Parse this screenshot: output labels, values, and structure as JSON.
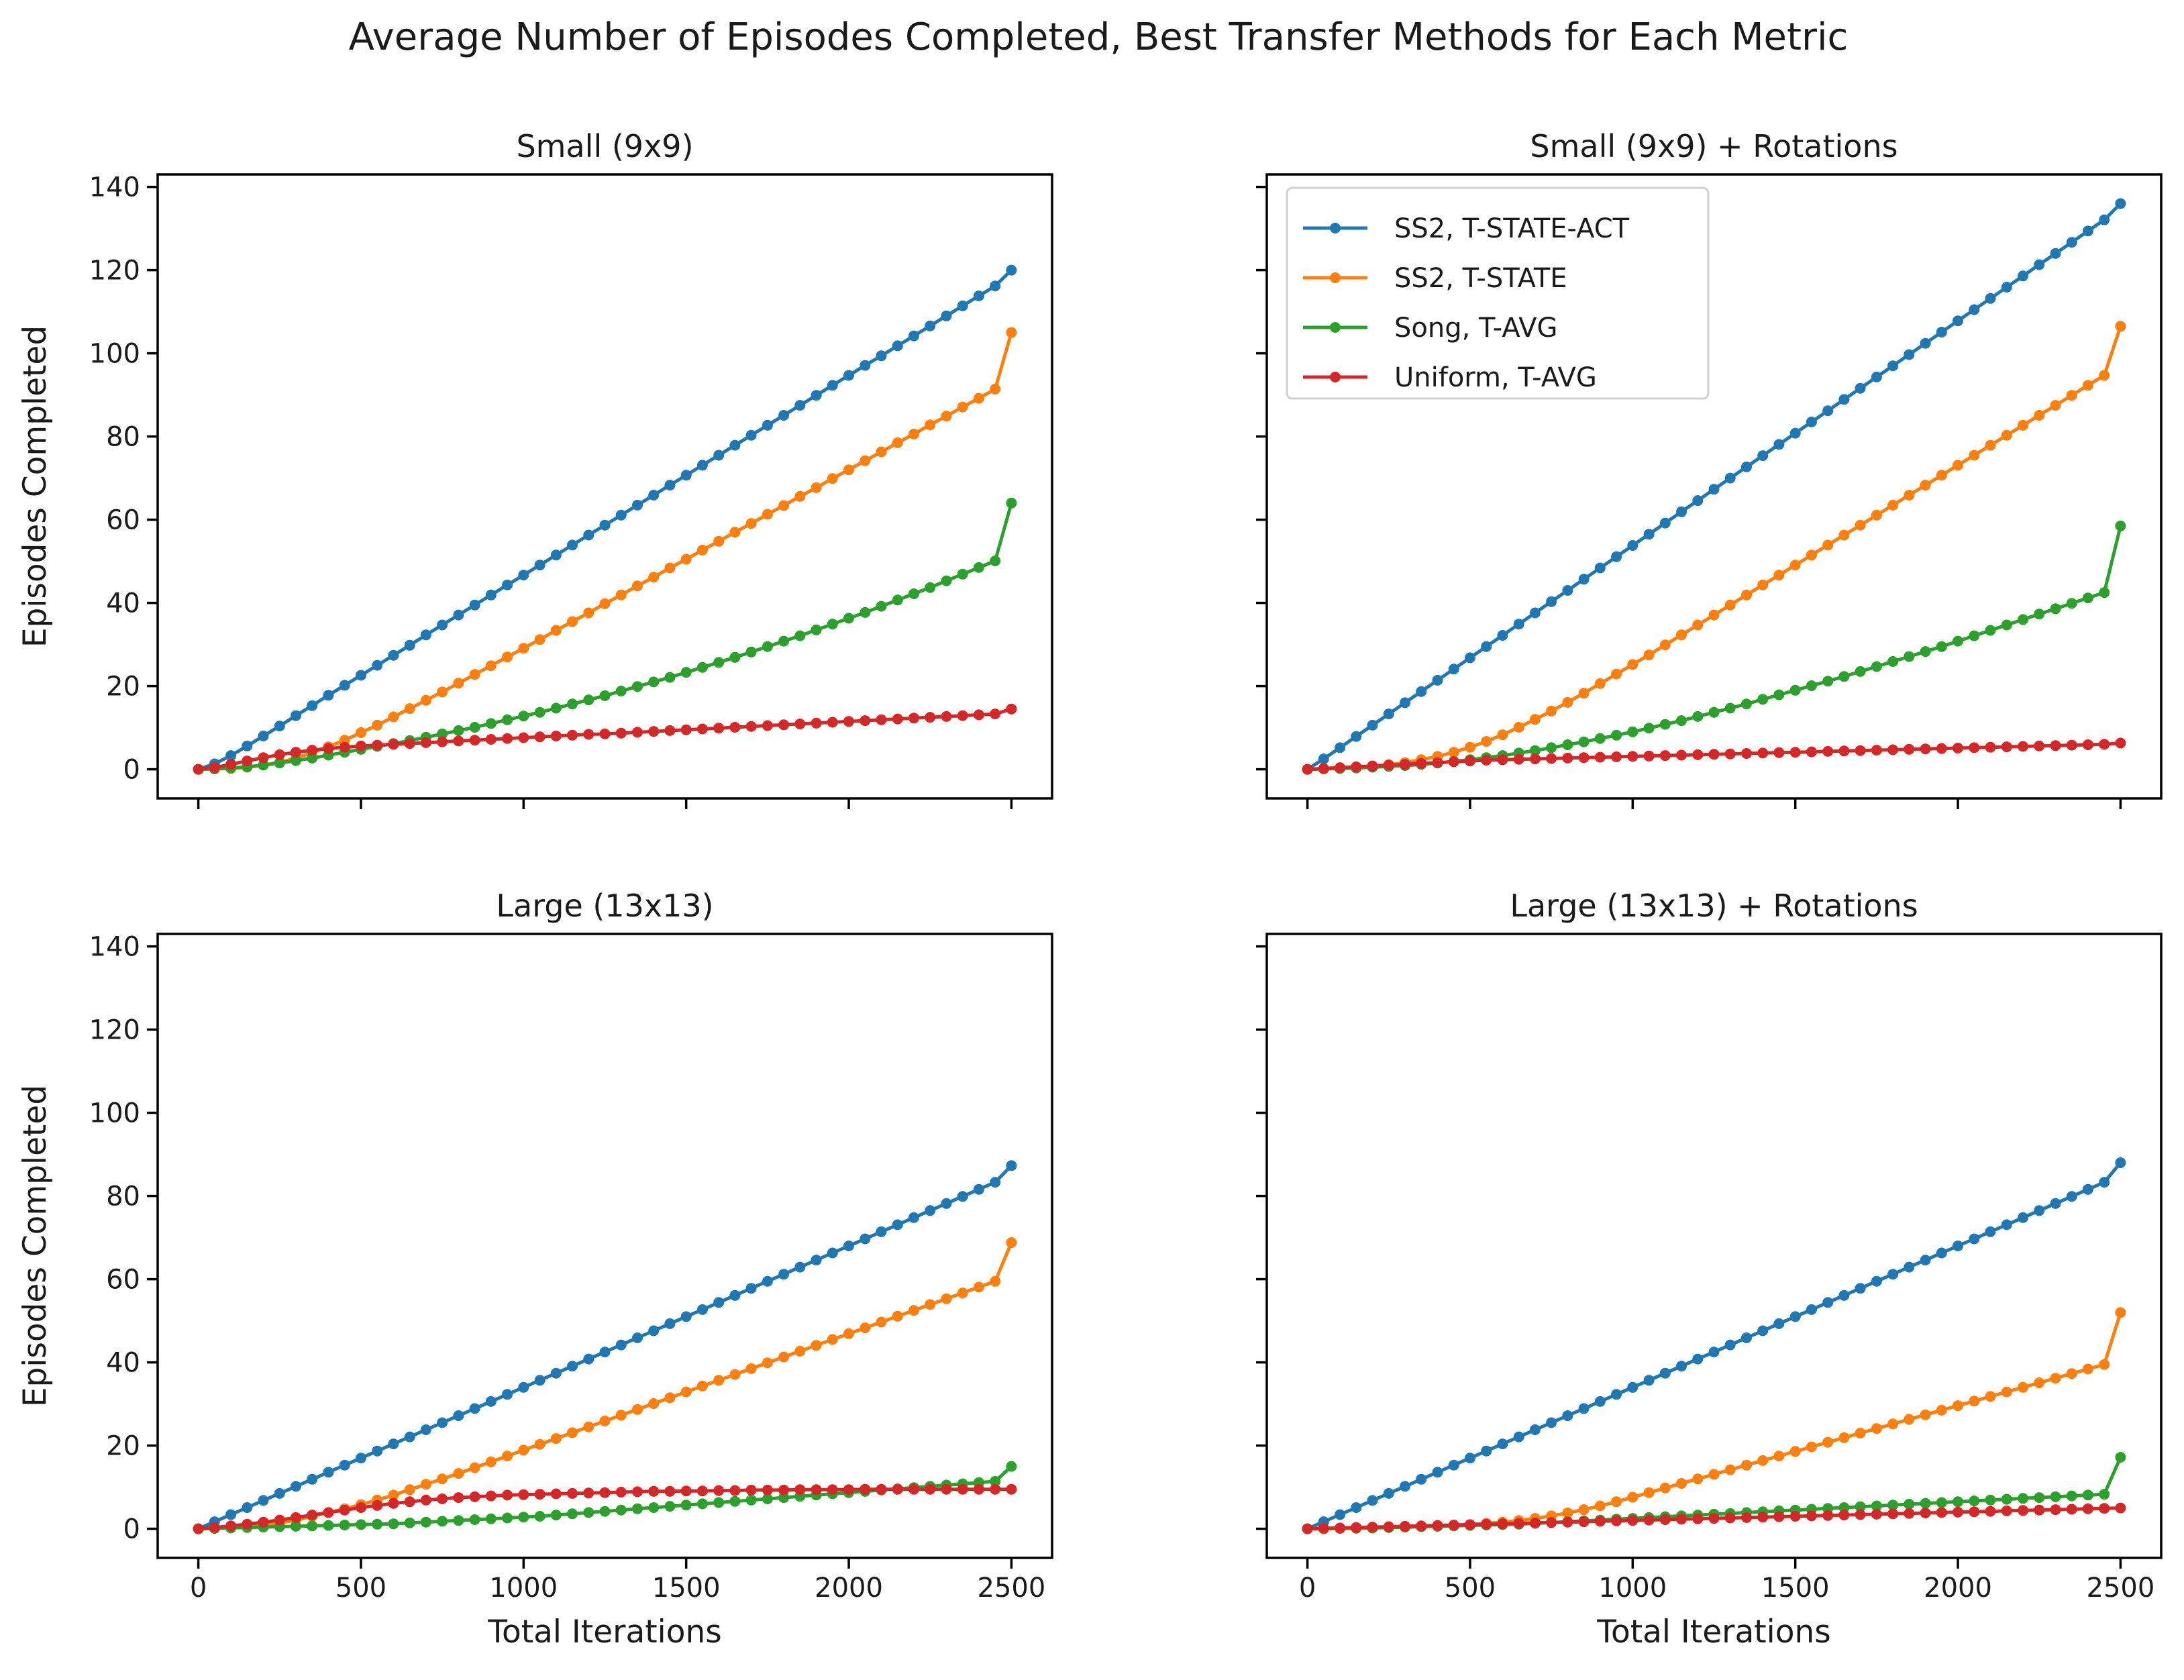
{
  "chart_data": {
    "type": "line",
    "title": "Average Number of Episodes Completed, Best Transfer Methods for Each Metric",
    "xlabel": "Total Iterations",
    "ylabel": "Episodes Completed",
    "xlim": [
      -125,
      2625
    ],
    "ylim": [
      -7,
      143
    ],
    "xticks": [
      "0",
      "500",
      "1000",
      "1500",
      "2000",
      "2500"
    ],
    "yticks": [
      "0",
      "20",
      "40",
      "60",
      "80",
      "100",
      "120",
      "140"
    ],
    "grid": false,
    "legend_position": "upper-left of the top-right panel",
    "series_meta": [
      {
        "name": "SS2, T-STATE-ACT",
        "color": "#1f77b4"
      },
      {
        "name": "SS2, T-STATE",
        "color": "#ff7f0e"
      },
      {
        "name": "Song, T-AVG",
        "color": "#2ca02c"
      },
      {
        "name": "Uniform, T-AVG",
        "color": "#d62728"
      }
    ],
    "x": [
      0,
      50,
      100,
      150,
      200,
      250,
      300,
      350,
      400,
      450,
      500,
      550,
      600,
      650,
      700,
      750,
      800,
      850,
      900,
      950,
      1000,
      1050,
      1100,
      1150,
      1200,
      1250,
      1300,
      1350,
      1400,
      1450,
      1500,
      1550,
      1600,
      1650,
      1700,
      1750,
      1800,
      1850,
      1900,
      1950,
      2000,
      2050,
      2100,
      2150,
      2200,
      2250,
      2300,
      2350,
      2400,
      2450,
      2500
    ],
    "panels": [
      {
        "title": "Small (9x9)",
        "series": [
          {
            "name": "SS2, T-STATE-ACT",
            "values": [
              0,
              1.3,
              3.3,
              5.6,
              8.0,
              10.4,
              12.9,
              15.3,
              17.8,
              20.2,
              22.6,
              25.0,
              27.4,
              29.8,
              32.3,
              34.7,
              37.1,
              39.5,
              41.9,
              44.3,
              46.7,
              49.1,
              51.5,
              53.9,
              56.3,
              58.7,
              61.1,
              63.5,
              65.9,
              68.3,
              70.7,
              73.1,
              75.5,
              77.9,
              80.3,
              82.7,
              85.1,
              87.5,
              89.9,
              92.3,
              94.7,
              97.1,
              99.4,
              101.8,
              104.2,
              106.6,
              109.0,
              111.4,
              113.8,
              116.2,
              120.0
            ]
          },
          {
            "name": "SS2, T-STATE",
            "values": [
              0,
              0.1,
              0.2,
              0.5,
              1.0,
              1.7,
              2.7,
              4.0,
              5.4,
              7.0,
              8.8,
              10.6,
              12.6,
              14.6,
              16.6,
              18.6,
              20.7,
              22.8,
              24.9,
              27.0,
              29.1,
              31.2,
              33.4,
              35.5,
              37.6,
              39.8,
              41.9,
              44.1,
              46.2,
              48.4,
              50.5,
              52.7,
              54.8,
              57.0,
              59.1,
              61.3,
              63.4,
              65.6,
              67.7,
              69.9,
              72.0,
              74.2,
              76.3,
              78.5,
              80.6,
              82.8,
              84.9,
              87.1,
              89.2,
              91.4,
              105.0
            ]
          },
          {
            "name": "Song, T-AVG",
            "values": [
              0,
              0.1,
              0.3,
              0.6,
              1.0,
              1.5,
              2.1,
              2.7,
              3.4,
              4.1,
              4.8,
              5.5,
              6.2,
              6.9,
              7.7,
              8.5,
              9.3,
              10.1,
              11.0,
              11.9,
              12.8,
              13.7,
              14.7,
              15.7,
              16.7,
              17.7,
              18.8,
              19.9,
              21.0,
              22.1,
              23.3,
              24.5,
              25.7,
              26.9,
              28.2,
              29.5,
              30.8,
              32.1,
              33.5,
              34.9,
              36.3,
              37.7,
              39.2,
              40.7,
              42.2,
              43.7,
              45.3,
              46.9,
              48.5,
              50.1,
              64.0
            ]
          },
          {
            "name": "Uniform, T-AVG",
            "values": [
              0,
              0.4,
              1.2,
              2.0,
              2.8,
              3.5,
              4.1,
              4.6,
              5.0,
              5.3,
              5.6,
              5.8,
              6.0,
              6.2,
              6.4,
              6.6,
              6.8,
              7.0,
              7.2,
              7.4,
              7.6,
              7.8,
              8.0,
              8.2,
              8.4,
              8.5,
              8.7,
              8.9,
              9.1,
              9.3,
              9.5,
              9.7,
              9.9,
              10.1,
              10.3,
              10.5,
              10.7,
              10.9,
              11.1,
              11.3,
              11.5,
              11.7,
              11.9,
              12.1,
              12.3,
              12.5,
              12.7,
              12.9,
              13.1,
              13.3,
              14.5
            ]
          }
        ]
      },
      {
        "title": "Small (9x9) + Rotations",
        "series": [
          {
            "name": "SS2, T-STATE-ACT",
            "values": [
              0,
              2.5,
              5.2,
              7.9,
              10.6,
              13.3,
              16.0,
              18.7,
              21.4,
              24.1,
              26.8,
              29.5,
              32.2,
              34.9,
              37.6,
              40.3,
              43.0,
              45.7,
              48.4,
              51.1,
              53.8,
              56.5,
              59.2,
              61.9,
              64.6,
              67.3,
              70.0,
              72.7,
              75.4,
              78.1,
              80.8,
              83.5,
              86.2,
              88.9,
              91.6,
              94.3,
              97.0,
              99.7,
              102.4,
              105.1,
              107.8,
              110.5,
              113.2,
              115.9,
              118.6,
              121.3,
              124.0,
              126.7,
              129.4,
              132.1,
              136.0
            ]
          },
          {
            "name": "SS2, T-STATE",
            "values": [
              0,
              0.1,
              0.2,
              0.4,
              0.7,
              1.1,
              1.6,
              2.3,
              3.1,
              4.1,
              5.3,
              6.7,
              8.3,
              10.1,
              12.0,
              14.0,
              16.1,
              18.3,
              20.6,
              22.9,
              25.2,
              27.5,
              29.9,
              32.3,
              34.7,
              37.1,
              39.5,
              41.9,
              44.3,
              46.7,
              49.1,
              51.5,
              53.9,
              56.3,
              58.7,
              61.1,
              63.5,
              65.9,
              68.3,
              70.7,
              73.1,
              75.5,
              77.9,
              80.3,
              82.7,
              85.1,
              87.5,
              89.9,
              92.3,
              94.7,
              106.5
            ]
          },
          {
            "name": "Song, T-AVG",
            "values": [
              0,
              0.1,
              0.2,
              0.3,
              0.5,
              0.7,
              0.9,
              1.2,
              1.5,
              1.9,
              2.3,
              2.8,
              3.3,
              3.9,
              4.5,
              5.2,
              5.9,
              6.6,
              7.4,
              8.2,
              9.0,
              9.9,
              10.8,
              11.7,
              12.7,
              13.7,
              14.7,
              15.7,
              16.8,
              17.9,
              19.0,
              20.1,
              21.2,
              22.3,
              23.5,
              24.7,
              25.9,
              27.1,
              28.3,
              29.5,
              30.8,
              32.1,
              33.4,
              34.7,
              36.0,
              37.3,
              38.6,
              39.9,
              41.2,
              42.5,
              58.5
            ]
          },
          {
            "name": "Uniform, T-AVG",
            "values": [
              0,
              0.2,
              0.4,
              0.6,
              0.8,
              1.0,
              1.2,
              1.4,
              1.6,
              1.8,
              2.0,
              2.2,
              2.3,
              2.4,
              2.5,
              2.6,
              2.7,
              2.8,
              2.9,
              3.0,
              3.1,
              3.2,
              3.3,
              3.4,
              3.5,
              3.6,
              3.7,
              3.8,
              3.9,
              4.0,
              4.1,
              4.2,
              4.3,
              4.4,
              4.5,
              4.6,
              4.7,
              4.8,
              4.9,
              5.0,
              5.1,
              5.2,
              5.3,
              5.4,
              5.5,
              5.6,
              5.7,
              5.8,
              5.9,
              6.0,
              6.3
            ]
          }
        ]
      },
      {
        "title": "Large (13x13)",
        "series": [
          {
            "name": "SS2, T-STATE-ACT",
            "values": [
              0,
              1.7,
              3.4,
              5.1,
              6.8,
              8.5,
              10.2,
              11.9,
              13.6,
              15.3,
              17.0,
              18.7,
              20.4,
              22.1,
              23.8,
              25.5,
              27.2,
              28.9,
              30.6,
              32.3,
              34.0,
              35.7,
              37.4,
              39.1,
              40.8,
              42.5,
              44.2,
              45.9,
              47.6,
              49.3,
              51.0,
              52.7,
              54.4,
              56.1,
              57.8,
              59.5,
              61.2,
              62.9,
              64.6,
              66.3,
              68.0,
              69.7,
              71.4,
              73.1,
              74.8,
              76.5,
              78.2,
              79.9,
              81.6,
              83.3,
              87.3
            ]
          },
          {
            "name": "SS2, T-STATE",
            "values": [
              0,
              0.1,
              0.2,
              0.4,
              0.8,
              1.4,
              2.1,
              3.0,
              3.9,
              4.8,
              5.8,
              6.9,
              8.1,
              9.4,
              10.7,
              12.0,
              13.3,
              14.7,
              16.1,
              17.5,
              18.9,
              20.3,
              21.7,
              23.1,
              24.5,
              25.9,
              27.3,
              28.7,
              30.1,
              31.5,
              32.9,
              34.3,
              35.7,
              37.1,
              38.5,
              39.9,
              41.3,
              42.7,
              44.1,
              45.5,
              46.9,
              48.3,
              49.7,
              51.1,
              52.5,
              53.9,
              55.3,
              56.7,
              58.1,
              59.5,
              68.8
            ]
          },
          {
            "name": "Song, T-AVG",
            "values": [
              0,
              0.1,
              0.2,
              0.3,
              0.4,
              0.5,
              0.6,
              0.7,
              0.8,
              0.9,
              1.0,
              1.1,
              1.2,
              1.4,
              1.6,
              1.8,
              2.0,
              2.2,
              2.4,
              2.6,
              2.8,
              3.0,
              3.3,
              3.6,
              3.9,
              4.2,
              4.5,
              4.8,
              5.1,
              5.4,
              5.7,
              6.0,
              6.3,
              6.6,
              6.9,
              7.2,
              7.5,
              7.8,
              8.1,
              8.4,
              8.7,
              9.0,
              9.3,
              9.6,
              9.9,
              10.2,
              10.5,
              10.8,
              11.1,
              11.4,
              15.0
            ]
          },
          {
            "name": "Uniform, T-AVG",
            "values": [
              0,
              0.3,
              0.7,
              1.1,
              1.6,
              2.1,
              2.7,
              3.3,
              3.9,
              4.5,
              5.1,
              5.6,
              6.1,
              6.5,
              6.9,
              7.2,
              7.5,
              7.7,
              7.9,
              8.1,
              8.2,
              8.3,
              8.4,
              8.5,
              8.6,
              8.7,
              8.8,
              8.9,
              9.0,
              9.0,
              9.1,
              9.1,
              9.2,
              9.2,
              9.3,
              9.3,
              9.3,
              9.4,
              9.4,
              9.4,
              9.4,
              9.5,
              9.5,
              9.5,
              9.5,
              9.5,
              9.5,
              9.5,
              9.5,
              9.5,
              9.5
            ]
          }
        ]
      },
      {
        "title": "Large (13x13) + Rotations",
        "series": [
          {
            "name": "SS2, T-STATE-ACT",
            "values": [
              0,
              1.7,
              3.4,
              5.1,
              6.8,
              8.5,
              10.2,
              11.9,
              13.6,
              15.3,
              17.0,
              18.7,
              20.4,
              22.1,
              23.8,
              25.5,
              27.2,
              28.9,
              30.6,
              32.3,
              34.0,
              35.7,
              37.4,
              39.1,
              40.8,
              42.5,
              44.2,
              45.9,
              47.6,
              49.3,
              51.0,
              52.7,
              54.4,
              56.1,
              57.8,
              59.5,
              61.2,
              62.9,
              64.6,
              66.3,
              68.0,
              69.7,
              71.4,
              73.1,
              74.8,
              76.5,
              78.2,
              79.9,
              81.6,
              83.3,
              88.0
            ]
          },
          {
            "name": "SS2, T-STATE",
            "values": [
              0,
              0.0,
              0.1,
              0.1,
              0.2,
              0.3,
              0.4,
              0.5,
              0.6,
              0.8,
              1.0,
              1.3,
              1.6,
              2.0,
              2.5,
              3.1,
              3.8,
              4.6,
              5.5,
              6.5,
              7.6,
              8.7,
              9.8,
              10.9,
              12.0,
              13.1,
              14.2,
              15.3,
              16.4,
              17.5,
              18.6,
              19.7,
              20.8,
              21.9,
              23.0,
              24.1,
              25.2,
              26.3,
              27.4,
              28.5,
              29.6,
              30.7,
              31.8,
              32.9,
              34.0,
              35.1,
              36.2,
              37.3,
              38.4,
              39.5,
              52.0
            ]
          },
          {
            "name": "Song, T-AVG",
            "values": [
              0,
              0.1,
              0.1,
              0.2,
              0.2,
              0.3,
              0.4,
              0.5,
              0.6,
              0.7,
              0.8,
              0.9,
              1.0,
              1.1,
              1.3,
              1.5,
              1.7,
              1.9,
              2.1,
              2.3,
              2.5,
              2.7,
              2.9,
              3.1,
              3.3,
              3.5,
              3.7,
              3.9,
              4.1,
              4.3,
              4.5,
              4.7,
              4.9,
              5.1,
              5.3,
              5.5,
              5.7,
              5.9,
              6.1,
              6.3,
              6.5,
              6.7,
              6.9,
              7.1,
              7.3,
              7.5,
              7.7,
              7.9,
              8.1,
              8.3,
              17.2
            ]
          },
          {
            "name": "Uniform, T-AVG",
            "values": [
              0,
              0.1,
              0.2,
              0.3,
              0.4,
              0.5,
              0.6,
              0.7,
              0.8,
              0.9,
              1.0,
              1.1,
              1.2,
              1.3,
              1.4,
              1.5,
              1.6,
              1.7,
              1.8,
              1.9,
              2.0,
              2.1,
              2.2,
              2.3,
              2.4,
              2.5,
              2.6,
              2.7,
              2.8,
              2.9,
              3.0,
              3.1,
              3.2,
              3.3,
              3.4,
              3.5,
              3.6,
              3.7,
              3.8,
              3.9,
              4.0,
              4.1,
              4.2,
              4.3,
              4.4,
              4.5,
              4.6,
              4.7,
              4.8,
              4.9,
              5.0
            ]
          }
        ]
      }
    ]
  }
}
